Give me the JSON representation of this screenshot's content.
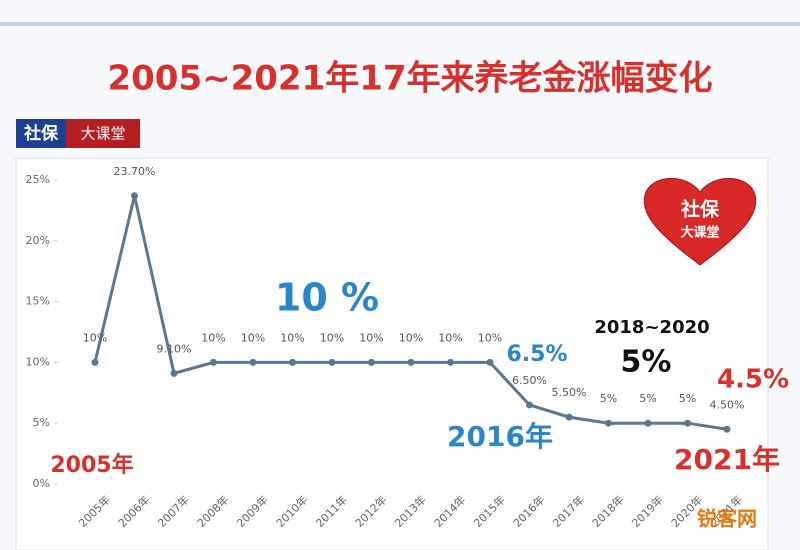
{
  "chart_data": {
    "type": "line",
    "title": "2005~2021年17年来养老金涨幅变化",
    "logo": [
      "社保",
      "大课堂"
    ],
    "badge": [
      "社保",
      "大课堂"
    ],
    "categories": [
      "2005年",
      "2006年",
      "2007年",
      "2008年",
      "2009年",
      "2010年",
      "2011年",
      "2012年",
      "2013年",
      "2014年",
      "2015年",
      "2016年",
      "2017年",
      "2018年",
      "2019年",
      "2020年",
      "2021年"
    ],
    "series": [
      {
        "name": "养老金涨幅",
        "color": "#587891",
        "values": [
          10,
          23.7,
          9.1,
          10,
          10,
          10,
          10,
          10,
          10,
          10,
          10,
          6.5,
          5.5,
          5,
          5,
          5,
          4.5
        ],
        "value_labels": [
          "10%",
          "23.70%",
          "9.10%",
          "10%",
          "10%",
          "10%",
          "10%",
          "10%",
          "10%",
          "10%",
          "10%",
          "6.50%",
          "5.50%",
          "5%",
          "5%",
          "5%",
          "4.50%"
        ]
      }
    ],
    "ylim": [
      0,
      25
    ],
    "yticks": [
      {
        "value": 0,
        "label": "0%"
      },
      {
        "value": 5,
        "label": "5%"
      },
      {
        "value": 10,
        "label": "10%"
      },
      {
        "value": 15,
        "label": "15%"
      },
      {
        "value": 20,
        "label": "20%"
      },
      {
        "value": 25,
        "label": "25%"
      }
    ],
    "annotations": [
      "10 %",
      "6.5%",
      "2016年",
      "2018~2020",
      "5%",
      "4.5%",
      "2005年",
      "2021年"
    ],
    "watermark": "锐客网"
  }
}
